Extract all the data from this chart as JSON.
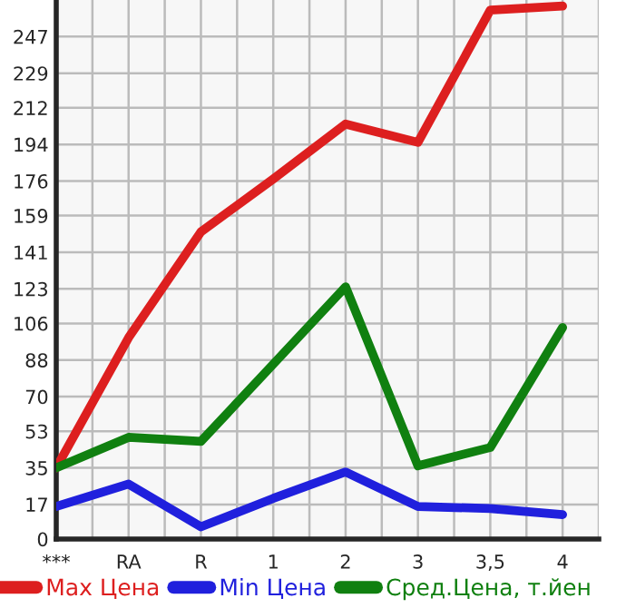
{
  "chart_data": {
    "type": "line",
    "categories": [
      "***",
      "RA",
      "R",
      "1",
      "2",
      "3",
      "3,5",
      "4"
    ],
    "series": [
      {
        "name": "Max Цена",
        "color": "#dd1f1f",
        "values": [
          35,
          99,
          151,
          177,
          204,
          195,
          260,
          262
        ]
      },
      {
        "name": "Min Цена",
        "color": "#2020dd",
        "values": [
          16,
          27,
          6,
          20,
          33,
          16,
          15,
          12
        ]
      },
      {
        "name": "Сред.Цена, т.йен",
        "color": "#108010",
        "values": [
          35,
          50,
          48,
          86,
          124,
          36,
          45,
          104
        ]
      }
    ],
    "ylim": [
      0,
      265
    ],
    "yticks": [
      0,
      17,
      35,
      53,
      70,
      88,
      106,
      123,
      141,
      159,
      176,
      194,
      212,
      229,
      247
    ],
    "grid": true,
    "legend": "bottom",
    "marker": "none",
    "line_style": "solid"
  }
}
